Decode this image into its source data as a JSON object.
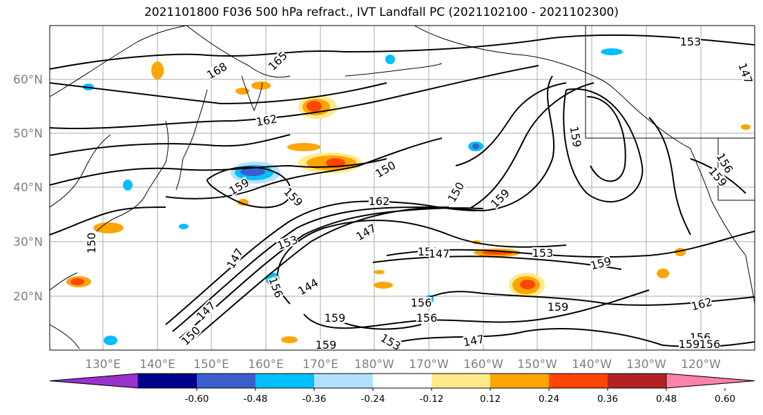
{
  "title": "2021101800 F036 500 hPa refract., IVT Landfall PC (2021102100 - 2021102300)",
  "lat_ticks": [
    "60°N",
    "50°N",
    "40°N",
    "30°N",
    "20°N"
  ],
  "lon_ticks": [
    "130°E",
    "140°E",
    "150°E",
    "160°E",
    "170°E",
    "180°W",
    "170°W",
    "160°W",
    "150°W",
    "140°W",
    "130°W",
    "120°W"
  ],
  "contour_labels": [
    "168",
    "165",
    "162",
    "159",
    "159",
    "150",
    "162",
    "150",
    "159",
    "159",
    "153",
    "147",
    "147",
    "147",
    "153",
    "150",
    "147",
    "159",
    "144",
    "156",
    "159",
    "156",
    "156",
    "159",
    "159",
    "153",
    "147",
    "162",
    "150",
    "156",
    "159",
    "147",
    "150",
    "153",
    "156",
    "159",
    "156"
  ],
  "colorbar": {
    "colors": [
      "#9932cc",
      "#00008b",
      "#3a5fcd",
      "#00bfff",
      "#b0e2ff",
      "#ffffff",
      "#ffea8a",
      "#ffa500",
      "#ff4500",
      "#b22222",
      "#ff82ab"
    ],
    "tick_labels": [
      "-0.60",
      "-0.48",
      "-0.36",
      "-0.24",
      "-0.12",
      "0.12",
      "0.24",
      "0.36",
      "0.48",
      "0.60"
    ]
  }
}
